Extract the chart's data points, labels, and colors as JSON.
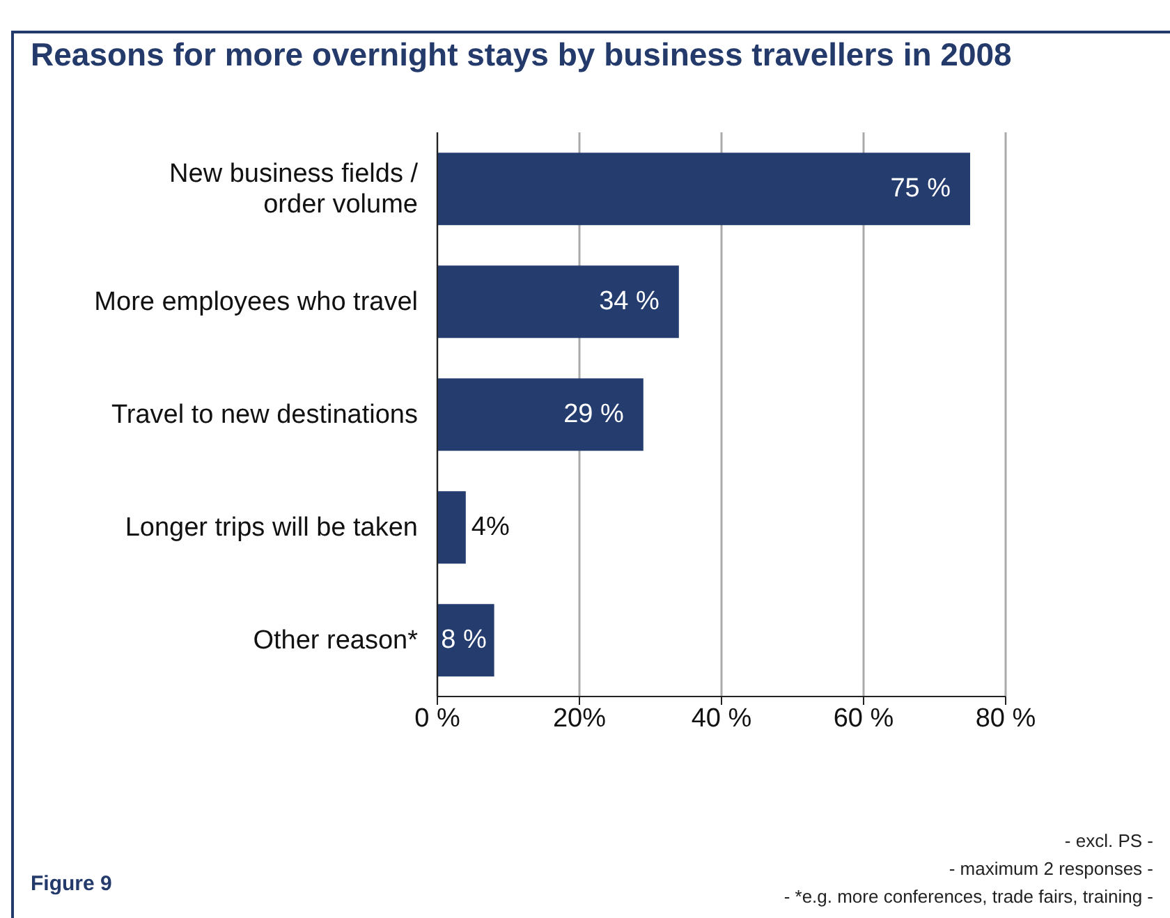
{
  "chart_data": {
    "type": "bar",
    "orientation": "horizontal",
    "title": "Reasons for more overnight stays by business travellers in 2008",
    "categories": [
      "New business fields / order volume",
      "More employees who travel",
      "Travel to new destinations",
      "Longer trips will be taken",
      "Other reason*"
    ],
    "values": [
      75,
      34,
      29,
      4,
      8
    ],
    "color": "#243c6e",
    "value_labels": [
      "75 %",
      "34 %",
      "29 %",
      "4%",
      "8 %"
    ],
    "xlim": [
      0,
      80
    ],
    "xticks": [
      {
        "value": 0,
        "label": "0 %"
      },
      {
        "value": 20,
        "label": "20%"
      },
      {
        "value": 40,
        "label": "40 %"
      },
      {
        "value": 60,
        "label": "60 %"
      },
      {
        "value": 80,
        "label": "80 %"
      }
    ],
    "grid": "x",
    "annotations": [
      "Figure 9",
      "- excl. PS -",
      "- maximum 2 responses -",
      "- *e.g. more conferences, trade fairs, training -"
    ]
  }
}
